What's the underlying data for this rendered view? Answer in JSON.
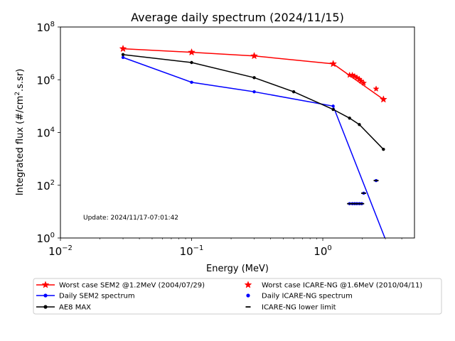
{
  "chart_data": {
    "type": "line",
    "title": "Average daily spectrum (2024/11/15)",
    "xlabel": "Energy (MeV)",
    "ylabel_parts": [
      "Integrated flux (#/cm",
      "2",
      ".s.sr)"
    ],
    "xscale": "log",
    "yscale": "log",
    "xlim": [
      0.01,
      5.0
    ],
    "ylim": [
      1,
      100000000
    ],
    "grid": false,
    "x_ticks": [
      {
        "value": 0.01,
        "base": "10",
        "exp": "−2"
      },
      {
        "value": 0.1,
        "base": "10",
        "exp": "−1"
      },
      {
        "value": 1,
        "base": "10",
        "exp": "0"
      }
    ],
    "y_ticks": [
      {
        "value": 1,
        "base": "10",
        "exp": "0"
      },
      {
        "value": 100,
        "base": "10",
        "exp": "2"
      },
      {
        "value": 10000,
        "base": "10",
        "exp": "4"
      },
      {
        "value": 1000000,
        "base": "10",
        "exp": "6"
      },
      {
        "value": 100000000,
        "base": "10",
        "exp": "8"
      }
    ],
    "annotation": "Update: 2024/11/17-07:01:42",
    "legend_position": "below",
    "series": [
      {
        "name": "Worst case SEM2 @1.2MeV (2004/07/29)",
        "color": "#ff0000",
        "style": "line",
        "marker": "star",
        "points": [
          [
            0.03,
            15000000
          ],
          [
            0.1,
            11000000
          ],
          [
            0.3,
            8000000
          ],
          [
            1.2,
            4000000
          ],
          [
            2.9,
            180000
          ]
        ]
      },
      {
        "name": "Daily SEM2 spectrum",
        "color": "#0000ff",
        "style": "line",
        "marker": "dot",
        "points": [
          [
            0.03,
            7000000
          ],
          [
            0.1,
            800000
          ],
          [
            0.3,
            350000
          ],
          [
            1.2,
            100000
          ],
          [
            3.0,
            0.9
          ]
        ]
      },
      {
        "name": "AE8 MAX",
        "color": "#000000",
        "style": "line",
        "marker": "dot",
        "points": [
          [
            0.03,
            9000000
          ],
          [
            0.1,
            4500000
          ],
          [
            0.3,
            1200000
          ],
          [
            0.6,
            350000
          ],
          [
            1.2,
            75000
          ],
          [
            1.6,
            35000
          ],
          [
            1.9,
            20000
          ],
          [
            2.9,
            2300
          ]
        ]
      },
      {
        "name": "Worst case ICARE-NG @1.6MeV (2010/04/11)",
        "color": "#ff0000",
        "style": "scatter",
        "marker": "star",
        "points": [
          [
            1.6,
            1500000
          ],
          [
            1.68,
            1500000
          ],
          [
            1.75,
            1350000
          ],
          [
            1.82,
            1200000
          ],
          [
            1.9,
            1050000
          ],
          [
            1.96,
            900000
          ],
          [
            2.05,
            750000
          ],
          [
            2.55,
            450000
          ]
        ]
      },
      {
        "name": "Daily ICARE-NG spectrum",
        "color": "#0000ff",
        "style": "scatter",
        "marker": "dot",
        "points": [
          [
            1.6,
            20
          ],
          [
            1.68,
            20
          ],
          [
            1.75,
            20
          ],
          [
            1.82,
            20
          ],
          [
            1.9,
            20
          ],
          [
            1.98,
            20
          ],
          [
            2.05,
            50
          ],
          [
            2.55,
            150
          ]
        ]
      },
      {
        "name": "ICARE-NG lower limit",
        "color": "#000000",
        "style": "scatter",
        "marker": "dash",
        "points": [
          [
            1.6,
            20
          ],
          [
            1.68,
            20
          ],
          [
            1.75,
            20
          ],
          [
            1.82,
            20
          ],
          [
            1.9,
            20
          ],
          [
            1.98,
            20
          ],
          [
            2.05,
            50
          ],
          [
            2.55,
            150
          ]
        ]
      }
    ],
    "legend_order": [
      0,
      3,
      1,
      4,
      2,
      5
    ]
  }
}
